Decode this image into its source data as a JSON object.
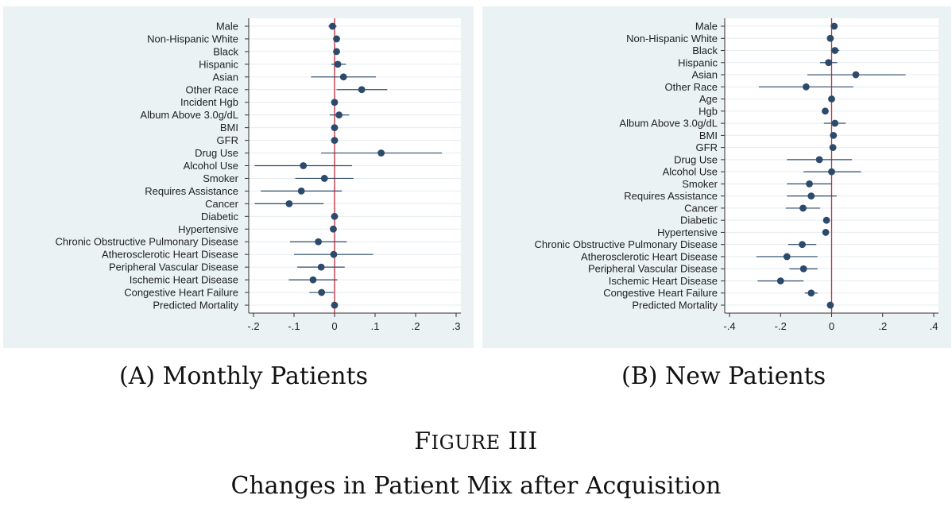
{
  "figure": {
    "label_first": "F",
    "label_rest": "IGURE",
    "label_numeral": " III",
    "title": "Changes in Patient Mix after Acquisition"
  },
  "colors": {
    "panel_bg": "#eaf2f3",
    "marker": "#2c4a6b",
    "zero_line": "#c0283a",
    "grid": "#ffffff"
  },
  "chart_data": [
    {
      "type": "scatter",
      "caption": "(A) Monthly Patients",
      "xlim": [
        -0.2,
        0.3
      ],
      "xticks": [
        -0.2,
        -0.1,
        0,
        0.1,
        0.2,
        0.3
      ],
      "xtick_labels": [
        "-.2",
        "-.1",
        "0",
        ".1",
        ".2",
        ".3"
      ],
      "reference_line": 0,
      "grid": true,
      "points": [
        {
          "label": "Male",
          "est": -0.005,
          "lo": -0.015,
          "hi": 0.005
        },
        {
          "label": "Non-Hispanic White",
          "est": 0.005,
          "lo": 0.0,
          "hi": 0.01
        },
        {
          "label": "Black",
          "est": 0.005,
          "lo": 0.0,
          "hi": 0.01
        },
        {
          "label": "Hispanic",
          "est": 0.008,
          "lo": -0.008,
          "hi": 0.028
        },
        {
          "label": "Asian",
          "est": 0.022,
          "lo": -0.058,
          "hi": 0.102
        },
        {
          "label": "Other Race",
          "est": 0.067,
          "lo": 0.005,
          "hi": 0.13
        },
        {
          "label": "Incident Hgb",
          "est": 0.0,
          "lo": -0.002,
          "hi": 0.002
        },
        {
          "label": "Album Above 3.0g/dL",
          "est": 0.011,
          "lo": -0.012,
          "hi": 0.036
        },
        {
          "label": "BMI",
          "est": 0.0,
          "lo": -0.002,
          "hi": 0.002
        },
        {
          "label": "GFR",
          "est": 0.0,
          "lo": -0.002,
          "hi": 0.002
        },
        {
          "label": "Drug Use",
          "est": 0.115,
          "lo": -0.033,
          "hi": 0.265
        },
        {
          "label": "Alcohol Use",
          "est": -0.077,
          "lo": -0.197,
          "hi": 0.043
        },
        {
          "label": "Smoker",
          "est": -0.025,
          "lo": -0.097,
          "hi": 0.047
        },
        {
          "label": "Requires Assistance",
          "est": -0.082,
          "lo": -0.182,
          "hi": 0.018
        },
        {
          "label": "Cancer",
          "est": -0.112,
          "lo": -0.197,
          "hi": -0.027
        },
        {
          "label": "Diabetic",
          "est": 0.0,
          "lo": -0.008,
          "hi": 0.008
        },
        {
          "label": "Hypertensive",
          "est": -0.003,
          "lo": -0.008,
          "hi": 0.002
        },
        {
          "label": "Chronic Obstructive Pulmonary Disease",
          "est": -0.04,
          "lo": -0.11,
          "hi": 0.03
        },
        {
          "label": "Atherosclerotic Heart Disease",
          "est": -0.002,
          "lo": -0.1,
          "hi": 0.095
        },
        {
          "label": "Peripheral Vascular Disease",
          "est": -0.033,
          "lo": -0.092,
          "hi": 0.025
        },
        {
          "label": "Ischemic Heart Disease",
          "est": -0.053,
          "lo": -0.113,
          "hi": 0.007
        },
        {
          "label": "Congestive Heart Failure",
          "est": -0.032,
          "lo": -0.062,
          "hi": -0.002
        },
        {
          "label": "Predicted Mortality",
          "est": 0.0,
          "lo": -0.002,
          "hi": 0.002
        }
      ]
    },
    {
      "type": "scatter",
      "caption": "(B) New Patients",
      "xlim": [
        -0.4,
        0.4
      ],
      "xticks": [
        -0.4,
        -0.2,
        0,
        0.2,
        0.4
      ],
      "xtick_labels": [
        "-.4",
        "-.2",
        "0",
        ".2",
        ".4"
      ],
      "reference_line": 0,
      "grid": true,
      "points": [
        {
          "label": "Male",
          "est": 0.01,
          "lo": 0.0,
          "hi": 0.02
        },
        {
          "label": "Non-Hispanic White",
          "est": -0.005,
          "lo": -0.012,
          "hi": 0.003
        },
        {
          "label": "Black",
          "est": 0.013,
          "lo": -0.002,
          "hi": 0.03
        },
        {
          "label": "Hispanic",
          "est": -0.012,
          "lo": -0.045,
          "hi": 0.022
        },
        {
          "label": "Asian",
          "est": 0.095,
          "lo": -0.095,
          "hi": 0.29
        },
        {
          "label": "Other Race",
          "est": -0.1,
          "lo": -0.285,
          "hi": 0.085
        },
        {
          "label": "Age",
          "est": 0.0,
          "lo": -0.003,
          "hi": 0.003
        },
        {
          "label": "Hgb",
          "est": -0.025,
          "lo": -0.035,
          "hi": -0.015
        },
        {
          "label": "Album Above 3.0g/dL",
          "est": 0.013,
          "lo": -0.03,
          "hi": 0.055
        },
        {
          "label": "BMI",
          "est": 0.007,
          "lo": 0.002,
          "hi": 0.012
        },
        {
          "label": "GFR",
          "est": 0.005,
          "lo": 0.0,
          "hi": 0.01
        },
        {
          "label": "Drug Use",
          "est": -0.048,
          "lo": -0.175,
          "hi": 0.08
        },
        {
          "label": "Alcohol Use",
          "est": 0.0,
          "lo": -0.11,
          "hi": 0.115
        },
        {
          "label": "Smoker",
          "est": -0.087,
          "lo": -0.175,
          "hi": 0.0
        },
        {
          "label": "Requires Assistance",
          "est": -0.08,
          "lo": -0.175,
          "hi": 0.02
        },
        {
          "label": "Cancer",
          "est": -0.112,
          "lo": -0.18,
          "hi": -0.045
        },
        {
          "label": "Diabetic",
          "est": -0.02,
          "lo": -0.03,
          "hi": -0.01
        },
        {
          "label": "Hypertensive",
          "est": -0.023,
          "lo": -0.033,
          "hi": -0.013
        },
        {
          "label": "Chronic Obstructive Pulmonary Disease",
          "est": -0.115,
          "lo": -0.17,
          "hi": -0.06
        },
        {
          "label": "Atherosclerotic Heart Disease",
          "est": -0.175,
          "lo": -0.295,
          "hi": -0.055
        },
        {
          "label": "Peripheral Vascular Disease",
          "est": -0.11,
          "lo": -0.165,
          "hi": -0.055
        },
        {
          "label": "Ischemic Heart Disease",
          "est": -0.2,
          "lo": -0.29,
          "hi": -0.11
        },
        {
          "label": "Congestive Heart Failure",
          "est": -0.08,
          "lo": -0.105,
          "hi": -0.055
        },
        {
          "label": "Predicted Mortality",
          "est": -0.005,
          "lo": -0.008,
          "hi": -0.002
        }
      ]
    }
  ]
}
